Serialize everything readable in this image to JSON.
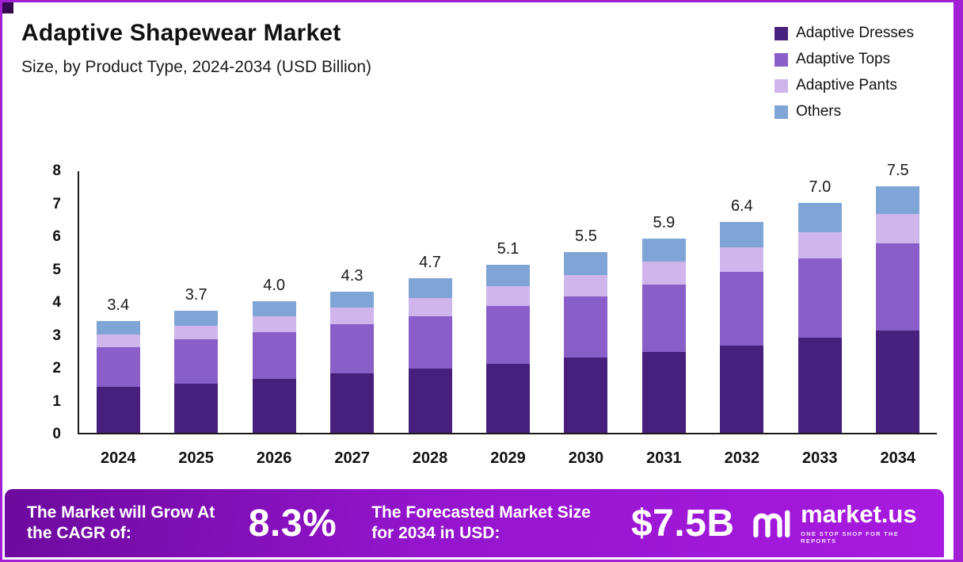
{
  "header": {
    "title": "Adaptive Shapewear Market",
    "subtitle": "Size, by Product Type, 2024-2034 (USD Billion)"
  },
  "legend": [
    {
      "label": "Adaptive Dresses",
      "color": "#46207c"
    },
    {
      "label": "Adaptive Tops",
      "color": "#8a5ec9"
    },
    {
      "label": "Adaptive Pants",
      "color": "#cfb5ec"
    },
    {
      "label": "Others",
      "color": "#7fa5d6"
    }
  ],
  "chart_data": {
    "type": "bar",
    "stacked": true,
    "title": "Adaptive Shapewear Market Size, by Product Type, 2024-2034 (USD Billion)",
    "xlabel": "",
    "ylabel": "USD Billion",
    "ylim": [
      0,
      8
    ],
    "yticks": [
      0,
      1,
      2,
      3,
      4,
      5,
      6,
      7,
      8
    ],
    "grid": false,
    "legend_position": "top-right",
    "categories": [
      "2024",
      "2025",
      "2026",
      "2027",
      "2028",
      "2029",
      "2030",
      "2031",
      "2032",
      "2033",
      "2034"
    ],
    "series": [
      {
        "name": "Adaptive Dresses",
        "color": "#46207c",
        "values": [
          1.4,
          1.5,
          1.65,
          1.8,
          1.95,
          2.1,
          2.3,
          2.45,
          2.65,
          2.9,
          3.1
        ]
      },
      {
        "name": "Adaptive Tops",
        "color": "#8a5ec9",
        "values": [
          1.2,
          1.35,
          1.4,
          1.5,
          1.6,
          1.75,
          1.85,
          2.05,
          2.25,
          2.4,
          2.65
        ]
      },
      {
        "name": "Adaptive Pants",
        "color": "#cfb5ec",
        "values": [
          0.4,
          0.4,
          0.5,
          0.5,
          0.55,
          0.6,
          0.65,
          0.7,
          0.75,
          0.8,
          0.9
        ]
      },
      {
        "name": "Others",
        "color": "#7fa5d6",
        "values": [
          0.4,
          0.45,
          0.45,
          0.5,
          0.6,
          0.65,
          0.7,
          0.7,
          0.75,
          0.9,
          0.85
        ]
      }
    ],
    "totals": [
      3.4,
      3.7,
      4.0,
      4.3,
      4.7,
      5.1,
      5.5,
      5.9,
      6.4,
      7.0,
      7.5
    ],
    "total_labels": [
      "3.4",
      "3.7",
      "4.0",
      "4.3",
      "4.7",
      "5.1",
      "5.5",
      "5.9",
      "6.4",
      "7.0",
      "7.5"
    ]
  },
  "footer": {
    "cagr_label": "The Market will Grow At the CAGR of:",
    "cagr_value": "8.3%",
    "forecast_label": "The Forecasted Market Size for 2034 in USD:",
    "forecast_value": "$7.5B",
    "logo_text": "market.us",
    "logo_tagline": "One Stop Shop For The Reports"
  },
  "colors": {
    "frame_border": "#a21fd6",
    "banner_gradient_start": "#6d0a9e",
    "banner_gradient_end": "#a81ae0",
    "axis": "#1a1a1a"
  }
}
